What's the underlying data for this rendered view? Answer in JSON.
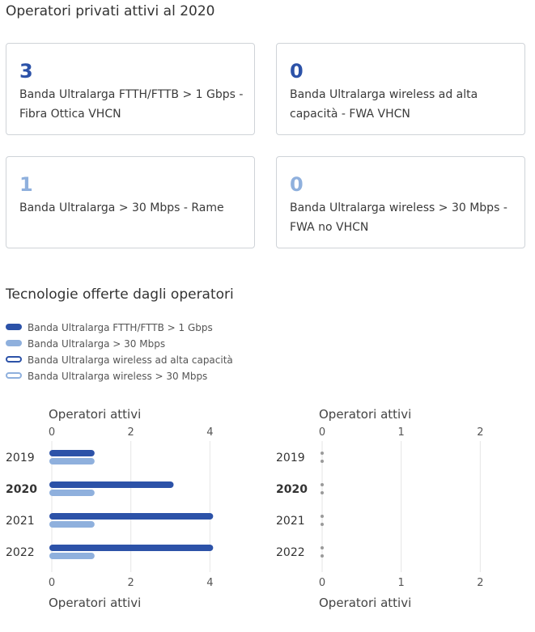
{
  "section1": {
    "title": "Operatori privati attivi al 2020",
    "cards": [
      {
        "value": "3",
        "label": "Banda Ultralarga FTTH/FTTB > 1 Gbps - Fibra Ottica VHCN",
        "color": "#2c52a8"
      },
      {
        "value": "0",
        "label": "Banda Ultralarga wireless ad alta capacità - FWA VHCN",
        "color": "#2c52a8"
      },
      {
        "value": "1",
        "label": "Banda Ultralarga > 30 Mbps - Rame",
        "color": "#8fb0dd"
      },
      {
        "value": "0",
        "label": "Banda Ultralarga wireless > 30 Mbps - FWA no VHCN",
        "color": "#8fb0dd"
      }
    ]
  },
  "section2": {
    "title": "Tecnologie offerte dagli operatori",
    "legend": [
      {
        "label": "Banda Ultralarga FTTH/FTTB > 1 Gbps",
        "color": "#2c52a8",
        "style": "filled"
      },
      {
        "label": "Banda Ultralarga > 30 Mbps",
        "color": "#8fb0dd",
        "style": "filled"
      },
      {
        "label": "Banda Ultralarga wireless ad alta capacità",
        "color": "#2c52a8",
        "style": "outline"
      },
      {
        "label": "Banda Ultralarga wireless > 30 Mbps",
        "color": "#8fb0dd",
        "style": "outline"
      }
    ]
  },
  "chart_data": [
    {
      "type": "bar",
      "orientation": "horizontal",
      "xlabel": "Operatori attivi",
      "categories": [
        "2019",
        "2020",
        "2021",
        "2022"
      ],
      "highlight_category": "2020",
      "xlim": [
        0,
        4.3
      ],
      "xticks": [
        0,
        2,
        4
      ],
      "grid": true,
      "series": [
        {
          "name": "Banda Ultralarga FTTH/FTTB > 1 Gbps",
          "color": "#2c52a8",
          "values": [
            1,
            3,
            4,
            4
          ]
        },
        {
          "name": "Banda Ultralarga > 30 Mbps",
          "color": "#8fb0dd",
          "values": [
            1,
            1,
            1,
            1
          ]
        }
      ]
    },
    {
      "type": "bar",
      "orientation": "horizontal",
      "xlabel": "Operatori attivi",
      "categories": [
        "2019",
        "2020",
        "2021",
        "2022"
      ],
      "highlight_category": "2020",
      "xlim": [
        0,
        2.15
      ],
      "xticks": [
        0,
        1,
        2
      ],
      "grid": true,
      "series": [
        {
          "name": "Banda Ultralarga wireless ad alta capacità",
          "color": "#2c52a8",
          "values": [
            0,
            0,
            0,
            0
          ]
        },
        {
          "name": "Banda Ultralarga wireless > 30 Mbps",
          "color": "#8fb0dd",
          "values": [
            0,
            0,
            0,
            0
          ]
        }
      ]
    }
  ]
}
